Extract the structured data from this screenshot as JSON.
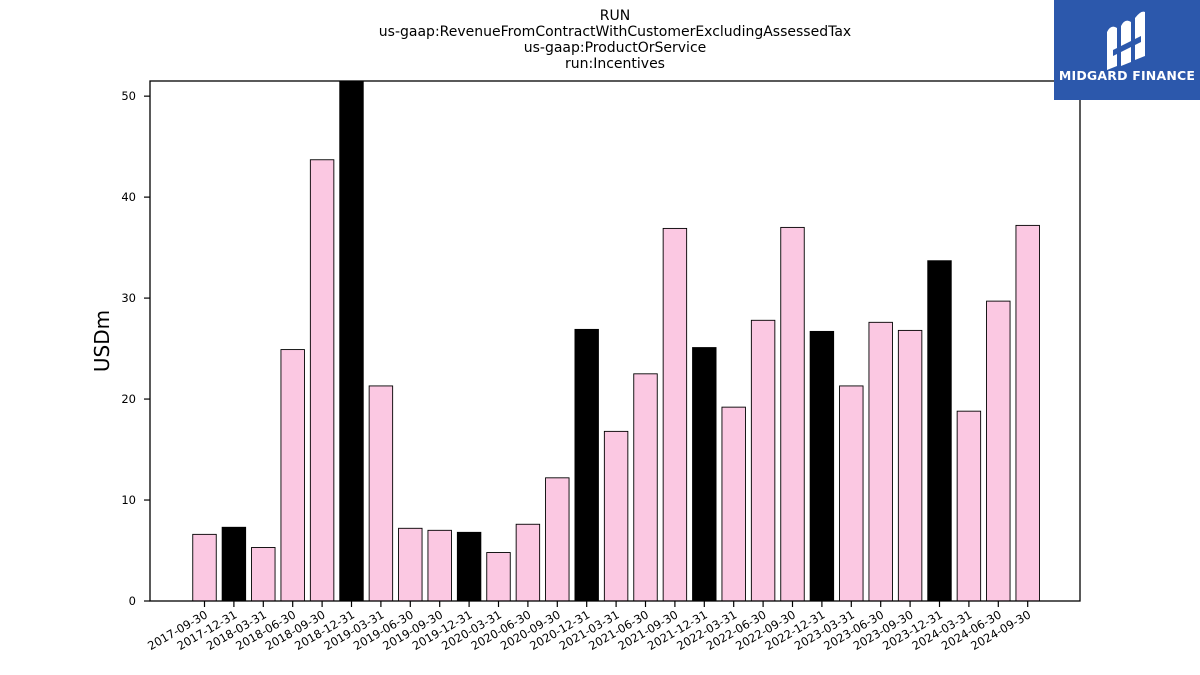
{
  "colors": {
    "bar_fill": "#fbc8e2",
    "highlight_fill": "#000000",
    "logo_bg": "#2c58ac"
  },
  "logo": {
    "text": "MIDGARD FINANCE",
    "icon": "midgard-logo-icon"
  },
  "chart_data": {
    "type": "bar",
    "title_lines": [
      "RUN",
      "us-gaap:RevenueFromContractWithCustomerExcludingAssessedTax",
      "us-gaap:ProductOrService",
      "run:Incentives"
    ],
    "xlabel": "",
    "ylabel": "USDm",
    "ylim": [
      0,
      51.5
    ],
    "yticks": [
      0,
      10,
      20,
      30,
      40,
      50
    ],
    "grid": false,
    "categories": [
      "2017-09-30",
      "2017-12-31",
      "2018-03-31",
      "2018-06-30",
      "2018-09-30",
      "2018-12-31",
      "2019-03-31",
      "2019-06-30",
      "2019-09-30",
      "2019-12-31",
      "2020-03-31",
      "2020-06-30",
      "2020-09-30",
      "2020-12-31",
      "2021-03-31",
      "2021-06-30",
      "2021-09-30",
      "2021-12-31",
      "2022-03-31",
      "2022-06-30",
      "2022-09-30",
      "2022-12-31",
      "2023-03-31",
      "2023-06-30",
      "2023-09-30",
      "2023-12-31",
      "2024-03-31",
      "2024-06-30",
      "2024-09-30"
    ],
    "values": [
      6.6,
      7.3,
      5.3,
      24.9,
      43.7,
      51.5,
      21.3,
      7.2,
      7.0,
      6.8,
      4.8,
      7.6,
      12.2,
      26.9,
      16.8,
      22.5,
      36.9,
      25.1,
      19.2,
      27.8,
      37.0,
      26.7,
      21.3,
      27.6,
      26.8,
      33.7,
      18.8,
      29.7,
      37.2
    ],
    "highlighted": [
      false,
      true,
      false,
      false,
      false,
      true,
      false,
      false,
      false,
      true,
      false,
      false,
      false,
      true,
      false,
      false,
      false,
      true,
      false,
      false,
      false,
      true,
      false,
      false,
      false,
      true,
      false,
      false,
      false
    ]
  }
}
